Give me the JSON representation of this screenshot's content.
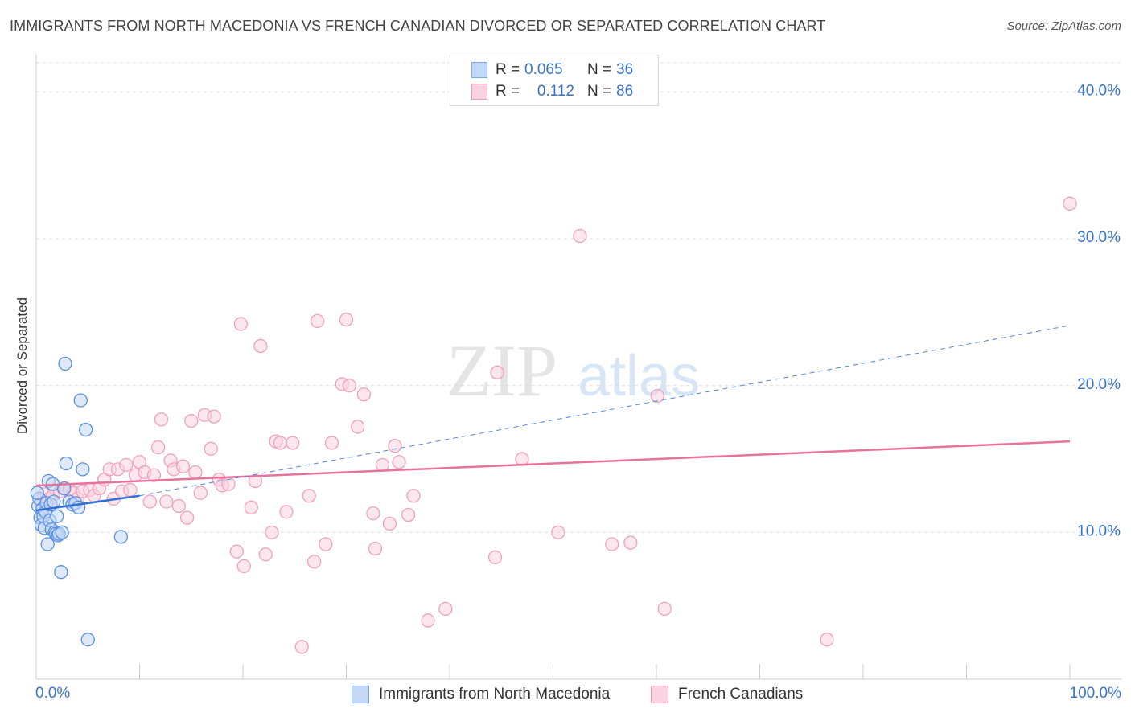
{
  "title": "IMMIGRANTS FROM NORTH MACEDONIA VS FRENCH CANADIAN DIVORCED OR SEPARATED CORRELATION CHART",
  "source": "Source: ZipAtlas.com",
  "watermark": {
    "zip": "ZIP",
    "atlas": "atlas"
  },
  "legend": {
    "rows": [
      {
        "r_label": "R =",
        "r_value": "0.065",
        "n_label": "N =",
        "n_value": "36",
        "color": "#7aaaf0",
        "fill": "#c3d8f6"
      },
      {
        "r_label": "R =",
        "r_value": "0.112",
        "n_label": "N =",
        "n_value": "86",
        "color": "#f39ab8",
        "fill": "#fbd3e0"
      }
    ]
  },
  "bottom_legend": [
    {
      "label": "Immigrants from North Macedonia",
      "color": "#7aaaf0",
      "fill": "#c3d8f6"
    },
    {
      "label": "French Canadians",
      "color": "#f39ab8",
      "fill": "#fbd3e0"
    }
  ],
  "chart_data": {
    "type": "scatter",
    "title": "IMMIGRANTS FROM NORTH MACEDONIA VS FRENCH CANADIAN DIVORCED OR SEPARATED CORRELATION CHART",
    "xlabel": "",
    "ylabel": "Divorced or Separated",
    "xlim": [
      0,
      100
    ],
    "ylim": [
      0,
      42
    ],
    "x_tick_labels": [
      "0.0%",
      "100.0%"
    ],
    "y_ticks": [
      10,
      20,
      30,
      40
    ],
    "y_tick_labels": [
      "10.0%",
      "20.0%",
      "30.0%",
      "40.0%"
    ],
    "grid": true,
    "series": [
      {
        "name": "Immigrants from North Macedonia",
        "color": "#4f86dc",
        "points": [
          [
            0.2,
            11.8
          ],
          [
            0.3,
            12.3
          ],
          [
            0.4,
            11.0
          ],
          [
            0.5,
            10.5
          ],
          [
            0.6,
            11.6
          ],
          [
            0.7,
            11.1
          ],
          [
            0.8,
            10.3
          ],
          [
            0.9,
            11.4
          ],
          [
            1.0,
            12.0
          ],
          [
            1.1,
            9.2
          ],
          [
            1.2,
            13.5
          ],
          [
            1.3,
            10.8
          ],
          [
            1.4,
            11.9
          ],
          [
            1.5,
            10.2
          ],
          [
            1.6,
            13.3
          ],
          [
            1.7,
            12.1
          ],
          [
            1.8,
            10.0
          ],
          [
            1.9,
            9.9
          ],
          [
            2.0,
            11.1
          ],
          [
            2.1,
            9.8
          ],
          [
            2.2,
            9.9
          ],
          [
            2.4,
            7.3
          ],
          [
            2.5,
            10.0
          ],
          [
            2.7,
            13.0
          ],
          [
            2.8,
            21.5
          ],
          [
            2.9,
            14.7
          ],
          [
            3.2,
            12.1
          ],
          [
            3.5,
            11.9
          ],
          [
            3.8,
            12.0
          ],
          [
            4.1,
            11.7
          ],
          [
            4.3,
            19.0
          ],
          [
            4.5,
            14.3
          ],
          [
            4.8,
            17.0
          ],
          [
            5.0,
            2.7
          ],
          [
            8.2,
            9.7
          ],
          [
            0.1,
            12.7
          ]
        ],
        "trend_solid": {
          "x": [
            0,
            10
          ],
          "y": [
            11.5,
            12.5
          ]
        },
        "trend_dashed": {
          "x": [
            10,
            100
          ],
          "y": [
            12.5,
            24.1
          ]
        }
      },
      {
        "name": "French Canadians",
        "color": "#ec6f9a",
        "points": [
          [
            0.8,
            12.6
          ],
          [
            1.3,
            12.3
          ],
          [
            1.6,
            12.5
          ],
          [
            2.3,
            12.8
          ],
          [
            2.8,
            13.0
          ],
          [
            3.2,
            12.9
          ],
          [
            3.6,
            12.7
          ],
          [
            4.0,
            12.3
          ],
          [
            4.5,
            12.8
          ],
          [
            5.2,
            12.9
          ],
          [
            5.6,
            12.5
          ],
          [
            6.1,
            13.0
          ],
          [
            6.6,
            13.6
          ],
          [
            7.1,
            14.3
          ],
          [
            7.5,
            12.3
          ],
          [
            7.9,
            14.3
          ],
          [
            8.3,
            12.8
          ],
          [
            8.7,
            14.6
          ],
          [
            9.1,
            12.9
          ],
          [
            9.6,
            13.9
          ],
          [
            10.0,
            14.8
          ],
          [
            10.5,
            14.1
          ],
          [
            11.0,
            12.1
          ],
          [
            11.4,
            13.9
          ],
          [
            11.8,
            15.8
          ],
          [
            12.1,
            17.7
          ],
          [
            12.6,
            12.1
          ],
          [
            13.0,
            14.9
          ],
          [
            13.3,
            14.3
          ],
          [
            13.8,
            11.8
          ],
          [
            14.2,
            14.5
          ],
          [
            14.6,
            11.0
          ],
          [
            15.0,
            17.6
          ],
          [
            15.4,
            14.1
          ],
          [
            15.9,
            12.7
          ],
          [
            16.3,
            18.0
          ],
          [
            16.9,
            15.7
          ],
          [
            17.2,
            17.9
          ],
          [
            17.7,
            13.6
          ],
          [
            18.0,
            13.2
          ],
          [
            18.6,
            13.3
          ],
          [
            19.4,
            8.7
          ],
          [
            19.8,
            24.2
          ],
          [
            20.1,
            7.7
          ],
          [
            20.8,
            11.7
          ],
          [
            21.2,
            13.5
          ],
          [
            21.7,
            22.7
          ],
          [
            22.2,
            8.5
          ],
          [
            22.8,
            10.0
          ],
          [
            23.2,
            16.2
          ],
          [
            23.6,
            16.1
          ],
          [
            24.2,
            11.4
          ],
          [
            24.8,
            16.1
          ],
          [
            25.7,
            2.2
          ],
          [
            26.4,
            12.5
          ],
          [
            26.9,
            8.0
          ],
          [
            27.2,
            24.4
          ],
          [
            28.0,
            9.2
          ],
          [
            28.6,
            16.1
          ],
          [
            29.6,
            20.1
          ],
          [
            30.0,
            24.5
          ],
          [
            30.3,
            20.0
          ],
          [
            31.1,
            17.2
          ],
          [
            31.7,
            19.4
          ],
          [
            32.6,
            11.3
          ],
          [
            32.8,
            8.9
          ],
          [
            33.5,
            14.6
          ],
          [
            34.2,
            10.6
          ],
          [
            34.7,
            15.9
          ],
          [
            35.1,
            14.8
          ],
          [
            36.0,
            11.2
          ],
          [
            36.5,
            12.5
          ],
          [
            37.9,
            4.0
          ],
          [
            39.6,
            4.8
          ],
          [
            44.4,
            8.3
          ],
          [
            44.6,
            20.9
          ],
          [
            47.0,
            15.0
          ],
          [
            50.5,
            10.0
          ],
          [
            52.6,
            30.2
          ],
          [
            55.7,
            9.2
          ],
          [
            57.5,
            9.3
          ],
          [
            60.1,
            19.3
          ],
          [
            60.8,
            4.8
          ],
          [
            76.5,
            2.7
          ],
          [
            100.0,
            32.4
          ],
          [
            0.5,
            12.0
          ]
        ],
        "trend_solid": {
          "x": [
            0,
            100
          ],
          "y": [
            13.2,
            16.2
          ]
        }
      }
    ]
  }
}
